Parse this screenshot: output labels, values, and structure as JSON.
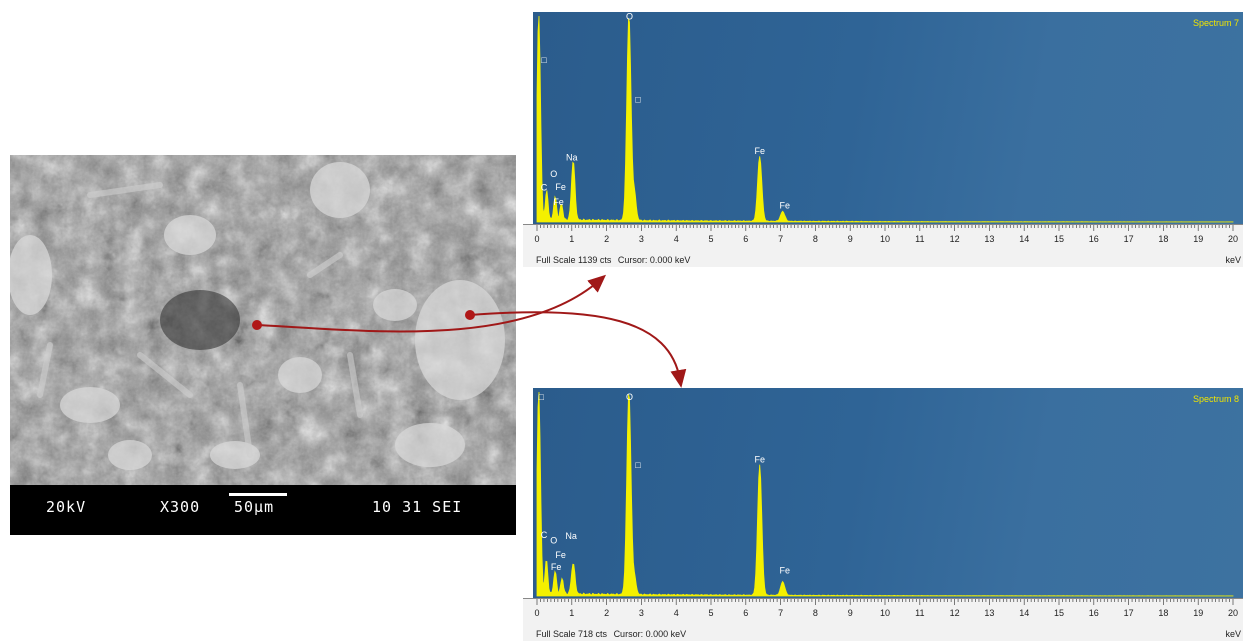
{
  "sem": {
    "voltage": "20kV",
    "magnification": "X300",
    "scale_bar": "50µm",
    "code": "10 31 SEI"
  },
  "chart_data": [
    {
      "type": "line",
      "title": "Spectrum 7",
      "xlabel": "keV",
      "xlim": [
        0,
        20
      ],
      "ylim": [
        0,
        1139
      ],
      "x_ticks": [
        0,
        1,
        2,
        3,
        4,
        5,
        6,
        7,
        8,
        9,
        10,
        11,
        12,
        13,
        14,
        15,
        16,
        17,
        18,
        19,
        20
      ],
      "full_scale": "Full Scale 1139 cts",
      "cursor": "Cursor: 0.000 keV",
      "peaks": [
        {
          "x": 0.05,
          "y": 1139,
          "width": 0.05
        },
        {
          "x": 0.28,
          "y": 160,
          "width": 0.04
        },
        {
          "x": 0.52,
          "y": 130,
          "width": 0.04
        },
        {
          "x": 0.7,
          "y": 90,
          "width": 0.04
        },
        {
          "x": 1.04,
          "y": 330,
          "width": 0.05
        },
        {
          "x": 2.64,
          "y": 1139,
          "width": 0.06
        },
        {
          "x": 2.8,
          "y": 150,
          "width": 0.05
        },
        {
          "x": 6.4,
          "y": 360,
          "width": 0.06
        },
        {
          "x": 7.06,
          "y": 55,
          "width": 0.06
        }
      ],
      "labels": [
        {
          "text": "□",
          "x": 0.2,
          "y": 880
        },
        {
          "text": "O",
          "x": 2.66,
          "y": 1120
        },
        {
          "text": "□",
          "x": 2.9,
          "y": 660
        },
        {
          "text": "Na",
          "x": 1.0,
          "y": 340
        },
        {
          "text": "O",
          "x": 0.48,
          "y": 250
        },
        {
          "text": "C",
          "x": 0.2,
          "y": 175
        },
        {
          "text": "Fe",
          "x": 0.68,
          "y": 178
        },
        {
          "text": "Fe",
          "x": 0.62,
          "y": 95
        },
        {
          "text": "Fe",
          "x": 6.4,
          "y": 375
        },
        {
          "text": "Fe",
          "x": 7.12,
          "y": 75
        }
      ]
    },
    {
      "type": "line",
      "title": "Spectrum 8",
      "xlabel": "keV",
      "xlim": [
        0,
        20
      ],
      "ylim": [
        0,
        718
      ],
      "x_ticks": [
        0,
        1,
        2,
        3,
        4,
        5,
        6,
        7,
        8,
        9,
        10,
        11,
        12,
        13,
        14,
        15,
        16,
        17,
        18,
        19,
        20
      ],
      "full_scale": "Full Scale 718 cts",
      "cursor": "Cursor: 0.000 keV",
      "peaks": [
        {
          "x": 0.05,
          "y": 718,
          "width": 0.05
        },
        {
          "x": 0.27,
          "y": 120,
          "width": 0.04
        },
        {
          "x": 0.52,
          "y": 80,
          "width": 0.04
        },
        {
          "x": 0.72,
          "y": 55,
          "width": 0.04
        },
        {
          "x": 1.04,
          "y": 110,
          "width": 0.05
        },
        {
          "x": 2.64,
          "y": 718,
          "width": 0.06
        },
        {
          "x": 2.8,
          "y": 60,
          "width": 0.05
        },
        {
          "x": 6.4,
          "y": 460,
          "width": 0.06
        },
        {
          "x": 7.06,
          "y": 48,
          "width": 0.06
        }
      ],
      "labels": [
        {
          "text": "□",
          "x": 0.12,
          "y": 690
        },
        {
          "text": "O",
          "x": 2.66,
          "y": 690
        },
        {
          "text": "□",
          "x": 2.9,
          "y": 450
        },
        {
          "text": "C",
          "x": 0.2,
          "y": 205
        },
        {
          "text": "O",
          "x": 0.48,
          "y": 185
        },
        {
          "text": "Na",
          "x": 0.98,
          "y": 200
        },
        {
          "text": "Fe",
          "x": 0.68,
          "y": 133
        },
        {
          "text": "Fe",
          "x": 0.55,
          "y": 92
        },
        {
          "text": "Fe",
          "x": 6.4,
          "y": 470
        },
        {
          "text": "Fe",
          "x": 7.12,
          "y": 80
        }
      ]
    }
  ]
}
